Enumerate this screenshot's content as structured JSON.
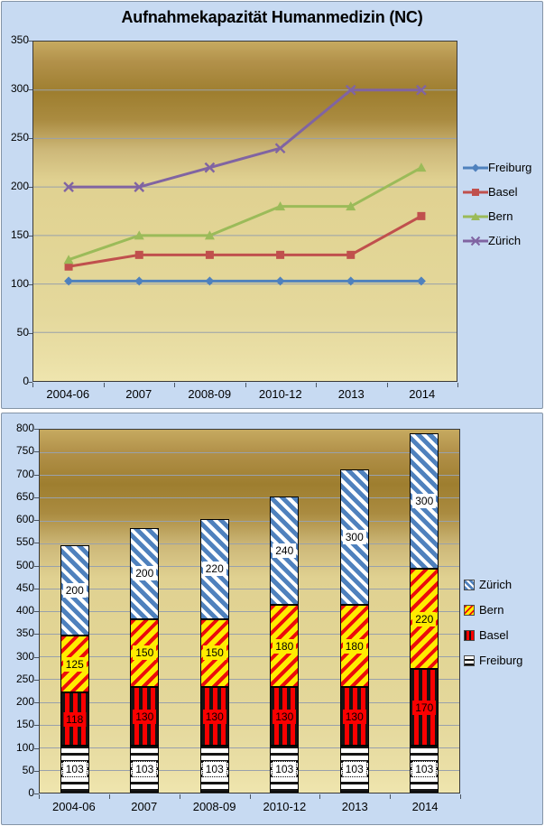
{
  "top_chart": {
    "title": "Aufnahmekapazität Humanmedizin (NC)",
    "chart_data": {
      "type": "line",
      "categories": [
        "2004-06",
        "2007",
        "2008-09",
        "2010-12",
        "2013",
        "2014"
      ],
      "series": [
        {
          "name": "Freiburg",
          "color": "#4F81BD",
          "marker": "diamond",
          "values": [
            103,
            103,
            103,
            103,
            103,
            103
          ]
        },
        {
          "name": "Basel",
          "color": "#C0504D",
          "marker": "square",
          "values": [
            118,
            130,
            130,
            130,
            130,
            170
          ]
        },
        {
          "name": "Bern",
          "color": "#9BBB59",
          "marker": "triangle",
          "values": [
            125,
            150,
            150,
            180,
            180,
            220
          ]
        },
        {
          "name": "Zürich",
          "color": "#8064A2",
          "marker": "x",
          "values": [
            200,
            200,
            220,
            240,
            300,
            300
          ]
        }
      ],
      "ylim": [
        0,
        350
      ],
      "ytick": 50,
      "grid": true,
      "legend_position": "right"
    }
  },
  "bottom_chart": {
    "chart_data": {
      "type": "bar",
      "stacked": true,
      "categories": [
        "2004-06",
        "2007",
        "2008-09",
        "2010-12",
        "2013",
        "2014"
      ],
      "series": [
        {
          "name": "Freiburg",
          "pattern": "freiburg",
          "label_bg": "#FFFFFF",
          "label_border": "dotted",
          "values": [
            103,
            103,
            103,
            103,
            103,
            103
          ]
        },
        {
          "name": "Basel",
          "pattern": "basel",
          "label_bg": "#FA0000",
          "label_border": "none",
          "values": [
            118,
            130,
            130,
            130,
            130,
            170
          ]
        },
        {
          "name": "Bern",
          "pattern": "bern",
          "label_bg": "#FFEC00",
          "label_border": "none",
          "values": [
            125,
            150,
            150,
            180,
            180,
            220
          ]
        },
        {
          "name": "Zürich",
          "pattern": "zurich",
          "label_bg": "#FFFFFF",
          "label_border": "none",
          "values": [
            200,
            200,
            220,
            240,
            300,
            300
          ]
        }
      ],
      "legend_order": [
        "Zürich",
        "Bern",
        "Basel",
        "Freiburg"
      ],
      "ylim": [
        0,
        800
      ],
      "ytick": 50,
      "grid": true,
      "legend_position": "right"
    }
  },
  "colors": {
    "panel_background": "#C7DAF2",
    "plot_gold_dark": "#9E7E2F",
    "plot_gold_light": "#EFE5AE",
    "gridline": "#99A1AB",
    "freiburg_blue": "#4F81BD",
    "basel_red": "#C0504D",
    "bern_green": "#9BBB59",
    "zurich_purple": "#8064A2"
  }
}
